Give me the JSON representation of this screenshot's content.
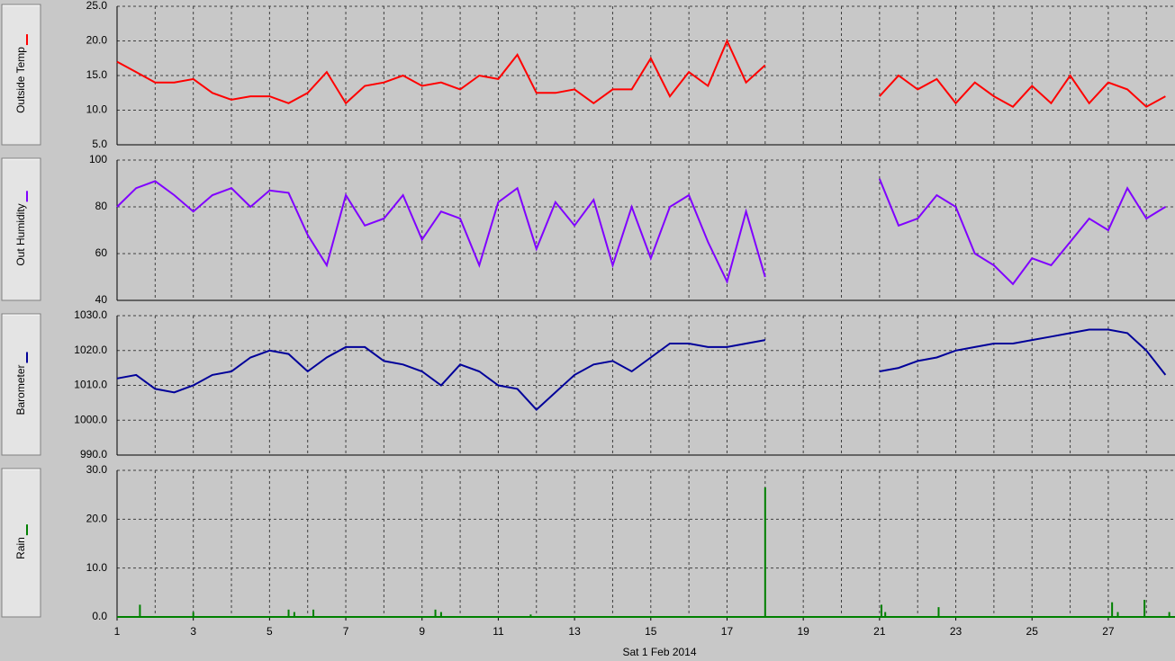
{
  "chart_data": [
    {
      "type": "line",
      "title": "Outside Temp",
      "color": "#ff0000",
      "x": [
        1,
        1.5,
        2,
        2.5,
        3,
        3.5,
        4,
        4.5,
        5,
        5.5,
        6,
        6.5,
        7,
        7.5,
        8,
        8.5,
        9,
        9.5,
        10,
        10.5,
        11,
        11.5,
        12,
        12.5,
        13,
        13.5,
        14,
        14.5,
        15,
        15.5,
        16,
        16.5,
        17,
        17.5,
        18,
        18.5,
        19,
        19.5,
        20,
        20.5,
        21,
        21.5,
        22,
        22.5,
        23,
        23.5,
        24,
        24.5,
        25,
        25.5,
        26,
        26.5,
        27,
        27.5,
        28,
        28.5
      ],
      "values": [
        17,
        15.5,
        14,
        14,
        14.5,
        12.5,
        11.5,
        12,
        12,
        11,
        12.5,
        15.5,
        11,
        13.5,
        14,
        15,
        13.5,
        14,
        13,
        15,
        14.5,
        18,
        12.5,
        12.5,
        13,
        11,
        13,
        13,
        17.5,
        12,
        15.5,
        13.5,
        20,
        14,
        16.5,
        null,
        null,
        null,
        null,
        null,
        12,
        15,
        13,
        14.5,
        11,
        14,
        12,
        10.5,
        13.5,
        11,
        15,
        11,
        14,
        13,
        10.5,
        12
      ],
      "xlim": [
        1,
        28.75
      ],
      "xticks": [
        1,
        3,
        5,
        7,
        9,
        11,
        13,
        15,
        17,
        19,
        21,
        23,
        25,
        27
      ],
      "xminorticks": [
        2,
        4,
        6,
        8,
        10,
        12,
        14,
        16,
        18,
        20,
        22,
        24,
        26,
        28
      ],
      "ylim": [
        5,
        25
      ],
      "yticks": [
        {
          "value": 5,
          "label": "5.0"
        },
        {
          "value": 10,
          "label": "10.0"
        },
        {
          "value": 15,
          "label": "15.0"
        },
        {
          "value": 20,
          "label": "20.0"
        },
        {
          "value": 25,
          "label": "25.0"
        }
      ]
    },
    {
      "type": "line",
      "title": "Out Humidity",
      "color": "#8000ff",
      "x": [
        1,
        1.5,
        2,
        2.5,
        3,
        3.5,
        4,
        4.5,
        5,
        5.5,
        6,
        6.5,
        7,
        7.5,
        8,
        8.5,
        9,
        9.5,
        10,
        10.5,
        11,
        11.5,
        12,
        12.5,
        13,
        13.5,
        14,
        14.5,
        15,
        15.5,
        16,
        16.5,
        17,
        17.5,
        18,
        18.5,
        19,
        19.5,
        20,
        20.5,
        21,
        21.5,
        22,
        22.5,
        23,
        23.5,
        24,
        24.5,
        25,
        25.5,
        26,
        26.5,
        27,
        27.5,
        28,
        28.5
      ],
      "values": [
        80,
        88,
        91,
        85,
        78,
        85,
        88,
        80,
        87,
        86,
        68,
        55,
        85,
        72,
        75,
        85,
        66,
        78,
        75,
        55,
        82,
        88,
        62,
        82,
        72,
        83,
        55,
        80,
        58,
        80,
        85,
        65,
        48,
        78,
        50,
        null,
        null,
        null,
        null,
        null,
        92,
        72,
        75,
        85,
        80,
        60,
        55,
        47,
        58,
        55,
        65,
        75,
        70,
        88,
        75,
        80
      ],
      "xlim": [
        1,
        28.75
      ],
      "xticks": [
        1,
        3,
        5,
        7,
        9,
        11,
        13,
        15,
        17,
        19,
        21,
        23,
        25,
        27
      ],
      "xminorticks": [
        2,
        4,
        6,
        8,
        10,
        12,
        14,
        16,
        18,
        20,
        22,
        24,
        26,
        28
      ],
      "ylim": [
        40,
        100
      ],
      "yticks": [
        40,
        60,
        80,
        100
      ]
    },
    {
      "type": "line",
      "title": "Barometer",
      "color": "#000099",
      "x": [
        1,
        1.5,
        2,
        2.5,
        3,
        3.5,
        4,
        4.5,
        5,
        5.5,
        6,
        6.5,
        7,
        7.5,
        8,
        8.5,
        9,
        9.5,
        10,
        10.5,
        11,
        11.5,
        12,
        12.5,
        13,
        13.5,
        14,
        14.5,
        15,
        15.5,
        16,
        16.5,
        17,
        17.5,
        18,
        18.5,
        19,
        19.5,
        20,
        20.5,
        21,
        21.5,
        22,
        22.5,
        23,
        23.5,
        24,
        24.5,
        25,
        25.5,
        26,
        26.5,
        27,
        27.5,
        28,
        28.5
      ],
      "values": [
        1012,
        1013,
        1009,
        1008,
        1010,
        1013,
        1014,
        1018,
        1020,
        1019,
        1014,
        1018,
        1021,
        1021,
        1017,
        1016,
        1014,
        1010,
        1016,
        1014,
        1010,
        1009,
        1003,
        1008,
        1013,
        1016,
        1017,
        1014,
        1018,
        1022,
        1022,
        1021,
        1021,
        1022,
        1023,
        null,
        null,
        null,
        null,
        null,
        1014,
        1015,
        1017,
        1018,
        1020,
        1021,
        1022,
        1022,
        1023,
        1024,
        1025,
        1026,
        1026,
        1025,
        1020,
        1013
      ],
      "xlim": [
        1,
        28.75
      ],
      "xticks": [
        1,
        3,
        5,
        7,
        9,
        11,
        13,
        15,
        17,
        19,
        21,
        23,
        25,
        27
      ],
      "xminorticks": [
        2,
        4,
        6,
        8,
        10,
        12,
        14,
        16,
        18,
        20,
        22,
        24,
        26,
        28
      ],
      "ylim": [
        990,
        1030
      ],
      "yticks": [
        {
          "value": 990,
          "label": "990.0"
        },
        {
          "value": 1000,
          "label": "1000.0"
        },
        {
          "value": 1010,
          "label": "1010.0"
        },
        {
          "value": 1020,
          "label": "1020.0"
        },
        {
          "value": 1030,
          "label": "1030.0"
        }
      ]
    },
    {
      "type": "bar",
      "title": "Rain",
      "color": "#008000",
      "xlabel": "Sat 1 Feb 2014",
      "x": [
        1.6,
        3.0,
        5.5,
        5.65,
        6.15,
        9.35,
        9.5,
        11.85,
        18.0,
        21.05,
        21.15,
        22.55,
        27.1,
        27.25,
        27.95,
        28.6
      ],
      "values": [
        2.5,
        1,
        1.5,
        1,
        1.5,
        1.5,
        1,
        0.5,
        26.5,
        2.5,
        1,
        2,
        3,
        1,
        3.5,
        1
      ],
      "xlim": [
        1,
        28.75
      ],
      "xticks": [
        1,
        3,
        5,
        7,
        9,
        11,
        13,
        15,
        17,
        19,
        21,
        23,
        25,
        27
      ],
      "xminorticks": [
        2,
        4,
        6,
        8,
        10,
        12,
        14,
        16,
        18,
        20,
        22,
        24,
        26,
        28
      ],
      "ylim": [
        0,
        30
      ],
      "yticks": [
        {
          "value": 0,
          "label": "0.0"
        },
        {
          "value": 10,
          "label": "10.0"
        },
        {
          "value": 20,
          "label": "20.0"
        },
        {
          "value": 30,
          "label": "30.0"
        }
      ]
    }
  ]
}
